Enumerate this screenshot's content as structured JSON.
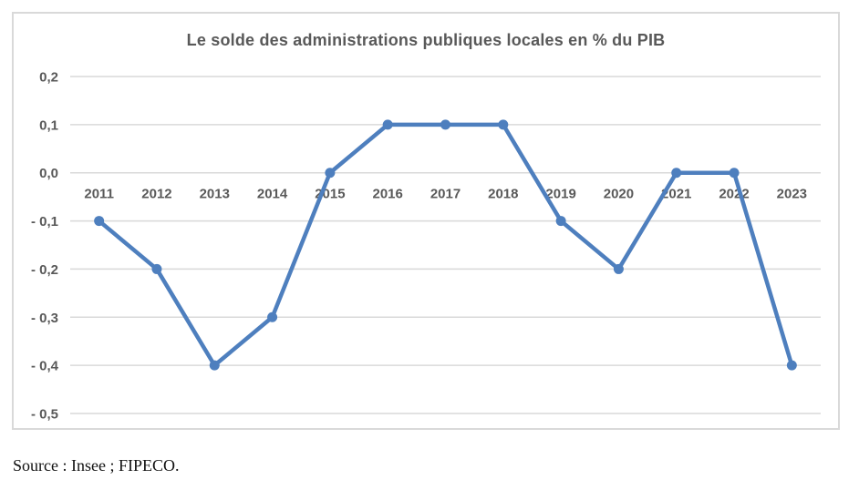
{
  "source": "Source : Insee ; FIPECO.",
  "colors": {
    "line": "#4e7fbe",
    "marker": "#4e7fbe",
    "grid": "#d9d9d9",
    "frame_border": "#d9d9d9",
    "tick_text": "#595959",
    "title_text": "#595959"
  },
  "chart_data": {
    "type": "line",
    "title": "Le solde des administrations publiques locales en % du PIB",
    "categories": [
      "2011",
      "2012",
      "2013",
      "2014",
      "2015",
      "2016",
      "2017",
      "2018",
      "2019",
      "2020",
      "2021",
      "2022",
      "2023"
    ],
    "values": [
      -0.1,
      -0.2,
      -0.4,
      -0.3,
      0.0,
      0.1,
      0.1,
      0.1,
      -0.1,
      -0.2,
      0.0,
      0.0,
      -0.4
    ],
    "xlabel": "",
    "ylabel": "",
    "ylim": [
      -0.5,
      0.2
    ],
    "ytick_step": 0.1,
    "ytick_labels": [
      "0,2",
      "0,1",
      "0,0",
      "- 0,1",
      "- 0,2",
      "- 0,3",
      "- 0,4",
      "- 0,5"
    ],
    "grid": true,
    "legend": false,
    "marker": "circle"
  }
}
